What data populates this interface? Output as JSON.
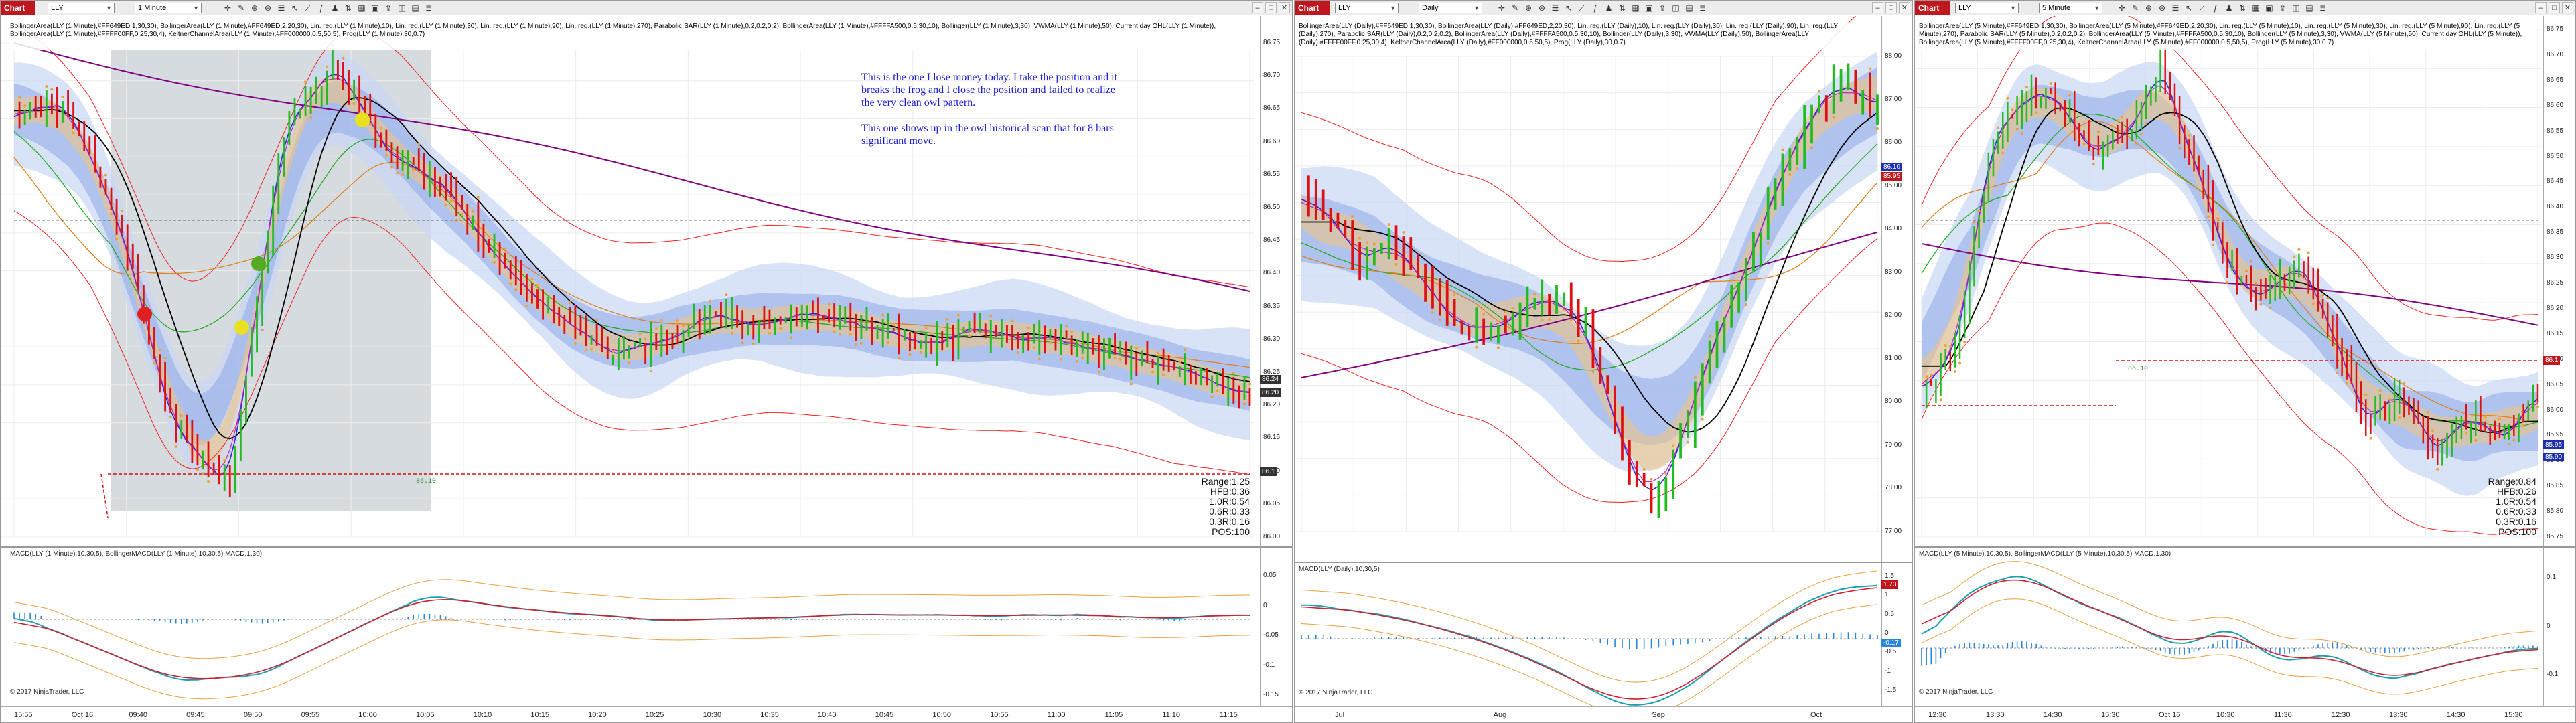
{
  "windows": [
    {
      "id": "w1",
      "chart_label": "Chart",
      "instrument": "LLY",
      "interval": "1 Minute",
      "indicator_text": "BollingerArea(LLY (1 Minute),#FF649ED,1,30,30), BollingerArea(LLY (1 Minute),#FF649ED,2,20,30), Lin. reg.(LLY (1 Minute),10), Lin. reg.(LLY (1 Minute),30), Lin. reg.(LLY (1 Minute),90), Lin. reg.(LLY (1 Minute),270), Parabolic SAR(LLY (1 Minute),0.2,0.2,0.2), BollingerArea(LLY (1 Minute),#FFFFA500,0.5,30,10), Bollinger(LLY (1 Minute),3,30), VWMA(LLY (1 Minute),50), Current day OHL(LLY (1 Minute)), BollingerArea(LLY (1 Minute),#FFFF00FF,0.25,30,4), KeltnerChannelArea(LLY (1 Minute),#FF000000,0.5,50,5), Prog(LLY (1 Minute),30,0.7)",
      "price_labels": [
        "86.75",
        "86.70",
        "86.65",
        "86.60",
        "86.55",
        "86.50",
        "86.45",
        "86.40",
        "86.35",
        "86.30",
        "86.25",
        "86.20",
        "86.15",
        "86.10",
        "86.05",
        "86.00"
      ],
      "price_tags": [
        "86.24",
        "86.20",
        "86.1"
      ],
      "level_label": "86.10",
      "note": [
        "This is the one I lose money today. I take the position and it",
        "breaks the frog and I close the position and failed to realize",
        "the very clean owl pattern.",
        "",
        "This one shows up in the owl historical scan that for 8 bars",
        "significant move."
      ],
      "stats": [
        "Range:1.25",
        "HFB:0.36",
        "1.0R:0.54",
        "0.6R:0.33",
        "0.3R:0.16",
        "POS:100"
      ],
      "macd_label": "MACD(LLY (1 Minute),10,30,5), BollingerMACD(LLY (1 Minute),10,30,5) MACD,1,30)",
      "macd_axis": [
        "0.05",
        "0",
        "-0.05",
        "-0.1",
        "-0.15"
      ],
      "copyright": "© 2017 NinjaTrader, LLC",
      "time_labels": [
        "15:55",
        "Oct 16",
        "09:40",
        "09:45",
        "09:50",
        "09:55",
        "10:00",
        "10:05",
        "10:10",
        "10:15",
        "10:20",
        "10:25",
        "10:30",
        "10:35",
        "10:40",
        "10:45",
        "10:50",
        "10:55",
        "11:00",
        "11:05",
        "11:10",
        "11:15"
      ]
    },
    {
      "id": "w2",
      "chart_label": "Chart",
      "instrument": "LLY",
      "interval": "Daily",
      "indicator_text": "BollingerArea(LLY (Daily),#FF649ED,1,30,30), BollingerArea(LLY (Daily),#FF649ED,2,20,30), Lin. reg.(LLY (Daily),10), Lin. reg.(LLY (Daily),30), Lin. reg.(LLY (Daily),90), Lin. reg.(LLY (Daily),270), Parabolic SAR(LLY (Daily),0.2,0.2,0.2), BollingerArea(LLY (Daily),#FFFFA500,0.5,30,10), Bollinger(LLY (Daily),3,30), VWMA(LLY (Daily),50), BollingerArea(LLY (Daily),#FFFF00FF,0.25,30,4), KeltnerChannelArea(LLY (Daily),#FF000000,0.5,50,5), Prog(LLY (Daily),30,0.7)",
      "price_labels": [
        "88.00",
        "87.00",
        "86.00",
        "85.00",
        "84.00",
        "83.00",
        "82.00",
        "81.00",
        "80.00",
        "79.00",
        "78.00",
        "77.00"
      ],
      "price_tags": [
        "86.10",
        "85.95"
      ],
      "macd_label": "MACD(LLY (Daily),10,30,5)",
      "macd_axis": [
        "1.5",
        "1",
        "0.5",
        "0",
        "-0.5",
        "-1",
        "-1.5"
      ],
      "macd_tags": [
        "1.73",
        "-0.17"
      ],
      "copyright": "© 2017 NinjaTrader, LLC",
      "time_labels": [
        "Jul",
        "Aug",
        "Sep",
        "Oct"
      ]
    },
    {
      "id": "w3",
      "chart_label": "Chart",
      "instrument": "LLY",
      "interval": "5 Minute",
      "indicator_text": "BollingerArea(LLY (5 Minute),#FF649ED,1,30,30), BollingerArea(LLY (5 Minute),#FF649ED,2,20,30), Lin. reg.(LLY (5 Minute),10), Lin. reg.(LLY (5 Minute),30), Lin. reg.(LLY (5 Minute),90), Lin. reg.(LLY (5 Minute),270), Parabolic SAR(LLY (5 Minute),0.2,0.2,0.2), BollingerArea(LLY (5 Minute),#FFFFA500,0.5,30,10), Bollinger(LLY (5 Minute),3,30), VWMA(LLY (5 Minute),50), Current day OHL(LLY (5 Minute)), BollingerArea(LLY (5 Minute),#FFFF00FF,0.25,30,4), KeltnerChannelArea(LLY (5 Minute),#FF000000,0.5,50,5), Prog(LLY (5 Minute),30,0.7)",
      "price_labels": [
        "86.75",
        "86.70",
        "86.65",
        "86.60",
        "86.55",
        "86.50",
        "86.45",
        "86.40",
        "86.35",
        "86.30",
        "86.25",
        "86.20",
        "86.15",
        "86.10",
        "86.05",
        "86.00",
        "85.95",
        "85.90",
        "85.85",
        "85.80",
        "85.75"
      ],
      "price_tags": [
        "86.1",
        "85.95",
        "85.90"
      ],
      "level_label": "86.10",
      "stats": [
        "Range:0.84",
        "HFB:0.26",
        "1.0R:0.54",
        "0.6R:0.33",
        "0.3R:0.16",
        "POS:100"
      ],
      "macd_label": "MACD(LLY (5 Minute),10,30,5), BollingerMACD(LLY (5 Minute),10,30,5) MACD,1,30)",
      "macd_axis": [
        "0.1",
        "0",
        "-0.1"
      ],
      "copyright": "© 2017 NinjaTrader, LLC",
      "time_labels": [
        "12:30",
        "13:30",
        "14:30",
        "15:30",
        "Oct 16",
        "10:30",
        "11:30",
        "12:30",
        "13:30",
        "14:30",
        "15:30"
      ]
    }
  ],
  "toolbar_icons": [
    "crosshair-icon",
    "pencil-icon",
    "zoom-in-icon",
    "zoom-out-icon",
    "properties-icon",
    "pointer-icon",
    "draw-tool-icon",
    "indicators-icon",
    "strategies-icon",
    "chart-trader-icon",
    "data-box-icon",
    "snapshot-icon",
    "share-icon",
    "template-icon",
    "grid-icon",
    "list-icon"
  ],
  "window_controls": [
    "minimize-icon",
    "maximize-icon",
    "close-icon"
  ],
  "colors": {
    "up": "#22bb22",
    "down": "#e01010",
    "band": "#9ab6ee",
    "orange": "#f0a030",
    "purple": "#800080",
    "accent": "#c0161d"
  }
}
